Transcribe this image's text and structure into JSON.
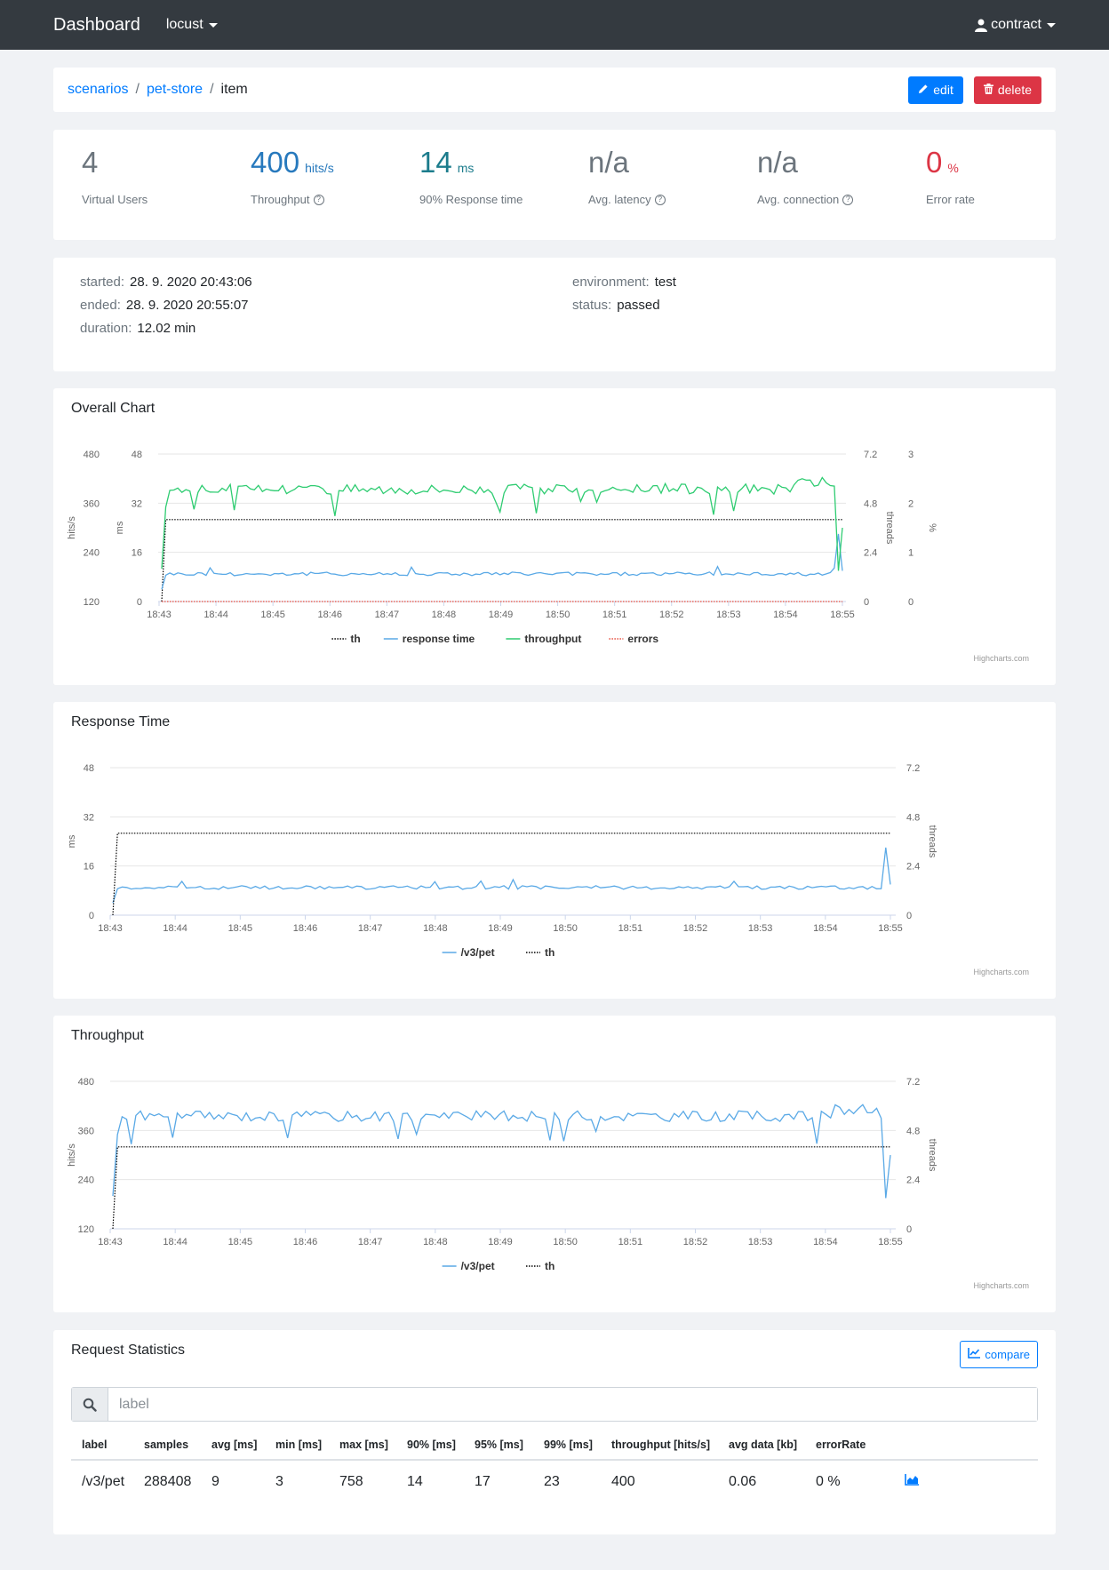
{
  "navbar": {
    "brand": "Dashboard",
    "project": "locust",
    "user": "contract"
  },
  "breadcrumb": {
    "items": [
      "scenarios",
      "pet-store"
    ],
    "current": "item",
    "edit_label": "edit",
    "delete_label": "delete"
  },
  "kpis": [
    {
      "value": "4",
      "unit": "",
      "label": "Virtual Users",
      "color": "#6c757d",
      "help": false
    },
    {
      "value": "400",
      "unit": "hits/s",
      "label": "Throughput",
      "color": "#2779bd",
      "help": true
    },
    {
      "value": "14",
      "unit": "ms",
      "label": "90% Response time",
      "color": "#1c7c8c",
      "help": false
    },
    {
      "value": "n/a",
      "unit": "",
      "label": "Avg. latency",
      "color": "#6c757d",
      "help": true
    },
    {
      "value": "n/a",
      "unit": "",
      "label": "Avg. connection",
      "color": "#6c757d",
      "help": true
    },
    {
      "value": "0",
      "unit": "%",
      "label": "Error rate",
      "color": "#dc3545",
      "help": false
    }
  ],
  "info": {
    "started_key": "started:",
    "started": "28. 9. 2020 20:43:06",
    "ended_key": "ended:",
    "ended": "28. 9. 2020 20:55:07",
    "duration_key": "duration:",
    "duration": "12.02 min",
    "environment_key": "environment:",
    "environment": "test",
    "status_key": "status:",
    "status": "passed"
  },
  "chart_data": [
    {
      "type": "line",
      "title": "Overall Chart",
      "x": [
        "18:43",
        "18:44",
        "18:45",
        "18:46",
        "18:47",
        "18:48",
        "18:49",
        "18:50",
        "18:51",
        "18:52",
        "18:53",
        "18:54",
        "18:55"
      ],
      "y_axes": [
        {
          "label": "hits/s",
          "ticks": [
            "480",
            "360",
            "240",
            "120"
          ],
          "range": [
            120,
            480
          ]
        },
        {
          "label": "ms",
          "ticks": [
            "48",
            "32",
            "16",
            "0"
          ],
          "range": [
            0,
            48
          ]
        },
        {
          "label": "threads",
          "ticks": [
            "7.2",
            "4.8",
            "2.4",
            "0"
          ],
          "range": [
            0,
            7.2
          ]
        },
        {
          "label": "%",
          "ticks": [
            "3",
            "2",
            "1",
            "0"
          ],
          "range": [
            0,
            3
          ]
        }
      ],
      "series": [
        {
          "name": "th",
          "color": "#000000",
          "style": "dotted",
          "axis": "threads",
          "level": 4,
          "start": 0
        },
        {
          "name": "response time",
          "color": "#5aa9e6",
          "style": "solid",
          "axis": "ms",
          "level": 9,
          "start": 4
        },
        {
          "name": "throughput",
          "color": "#2ecc71",
          "style": "solid",
          "axis": "hits/s",
          "level": 400,
          "start": 200
        },
        {
          "name": "errors",
          "color": "#e74c3c",
          "style": "dotted",
          "axis": "%",
          "level": 0,
          "start": 0
        }
      ],
      "grid": true,
      "legend": "bottom-center",
      "credit": "Highcharts.com"
    },
    {
      "type": "line",
      "title": "Response Time",
      "x": [
        "18:43",
        "18:44",
        "18:45",
        "18:46",
        "18:47",
        "18:48",
        "18:49",
        "18:50",
        "18:51",
        "18:52",
        "18:53",
        "18:54",
        "18:55"
      ],
      "y_axes": [
        {
          "label": "ms",
          "ticks": [
            "48",
            "32",
            "16",
            "0"
          ],
          "range": [
            0,
            48
          ]
        },
        {
          "label": "threads",
          "ticks": [
            "7.2",
            "4.8",
            "2.4",
            "0"
          ],
          "range": [
            0,
            7.2
          ]
        }
      ],
      "series": [
        {
          "name": "/v3/pet",
          "color": "#5aa9e6",
          "style": "solid",
          "axis": "ms",
          "level": 9,
          "start": 4
        },
        {
          "name": "th",
          "color": "#000000",
          "style": "dotted",
          "axis": "threads",
          "level": 4,
          "start": 0
        }
      ],
      "grid": true,
      "legend": "bottom-center",
      "credit": "Highcharts.com"
    },
    {
      "type": "line",
      "title": "Throughput",
      "x": [
        "18:43",
        "18:44",
        "18:45",
        "18:46",
        "18:47",
        "18:48",
        "18:49",
        "18:50",
        "18:51",
        "18:52",
        "18:53",
        "18:54",
        "18:55"
      ],
      "y_axes": [
        {
          "label": "hits/s",
          "ticks": [
            "480",
            "360",
            "240",
            "120"
          ],
          "range": [
            120,
            480
          ]
        },
        {
          "label": "threads",
          "ticks": [
            "7.2",
            "4.8",
            "2.4",
            "0"
          ],
          "range": [
            0,
            7.2
          ]
        }
      ],
      "series": [
        {
          "name": "/v3/pet",
          "color": "#5aa9e6",
          "style": "solid",
          "axis": "hits/s",
          "level": 400,
          "start": 200
        },
        {
          "name": "th",
          "color": "#000000",
          "style": "dotted",
          "axis": "threads",
          "level": 4,
          "start": 0
        }
      ],
      "grid": true,
      "legend": "bottom-center",
      "credit": "Highcharts.com"
    }
  ],
  "stats": {
    "title": "Request Statistics",
    "compare_label": "compare",
    "search_placeholder": "label",
    "columns": [
      "label",
      "samples",
      "avg [ms]",
      "min [ms]",
      "max [ms]",
      "90% [ms]",
      "95% [ms]",
      "99% [ms]",
      "throughput [hits/s]",
      "avg data [kb]",
      "errorRate"
    ],
    "rows": [
      [
        "/v3/pet",
        "288408",
        "9",
        "3",
        "758",
        "14",
        "17",
        "23",
        "400",
        "0.06",
        "0 %"
      ]
    ]
  }
}
